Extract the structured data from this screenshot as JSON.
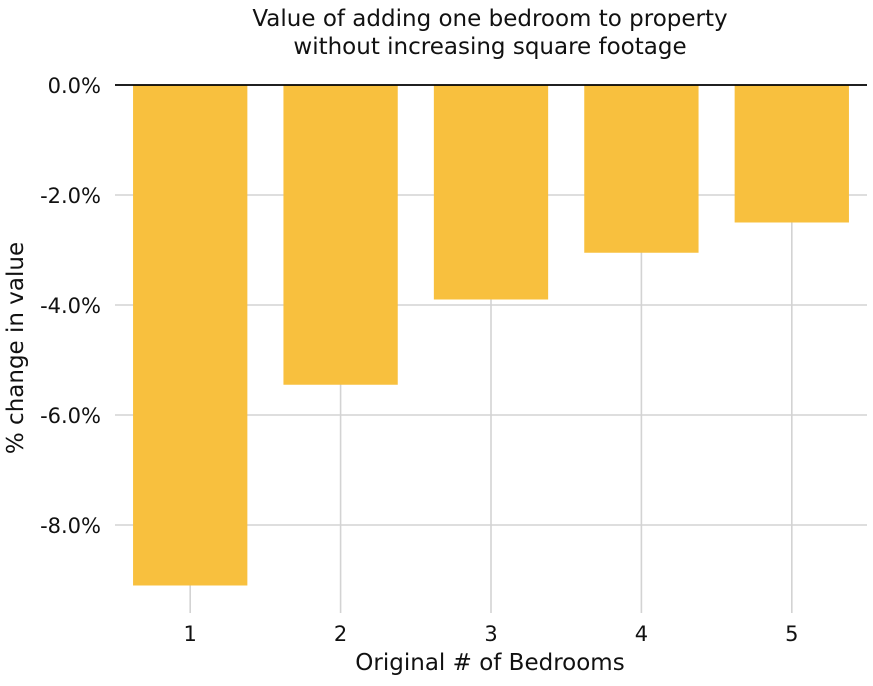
{
  "chart_data": {
    "type": "bar",
    "title_lines": [
      "Value of adding one bedroom to property",
      "without increasing square footage"
    ],
    "xlabel": "Original # of Bedrooms",
    "ylabel": "% change in value",
    "categories": [
      "1",
      "2",
      "3",
      "4",
      "5"
    ],
    "values": [
      -9.1,
      -5.45,
      -3.9,
      -3.05,
      -2.5
    ],
    "ylim": [
      -9.6,
      0
    ],
    "yticks": [
      0,
      -2,
      -4,
      -6,
      -8
    ],
    "ytick_labels": [
      "0.0%",
      "-2.0%",
      "-4.0%",
      "-6.0%",
      "-8.0%"
    ],
    "grid": true,
    "bar_color": "#F8C03E",
    "grid_color": "#d3d3d3",
    "zero_line_color": "#000000"
  }
}
